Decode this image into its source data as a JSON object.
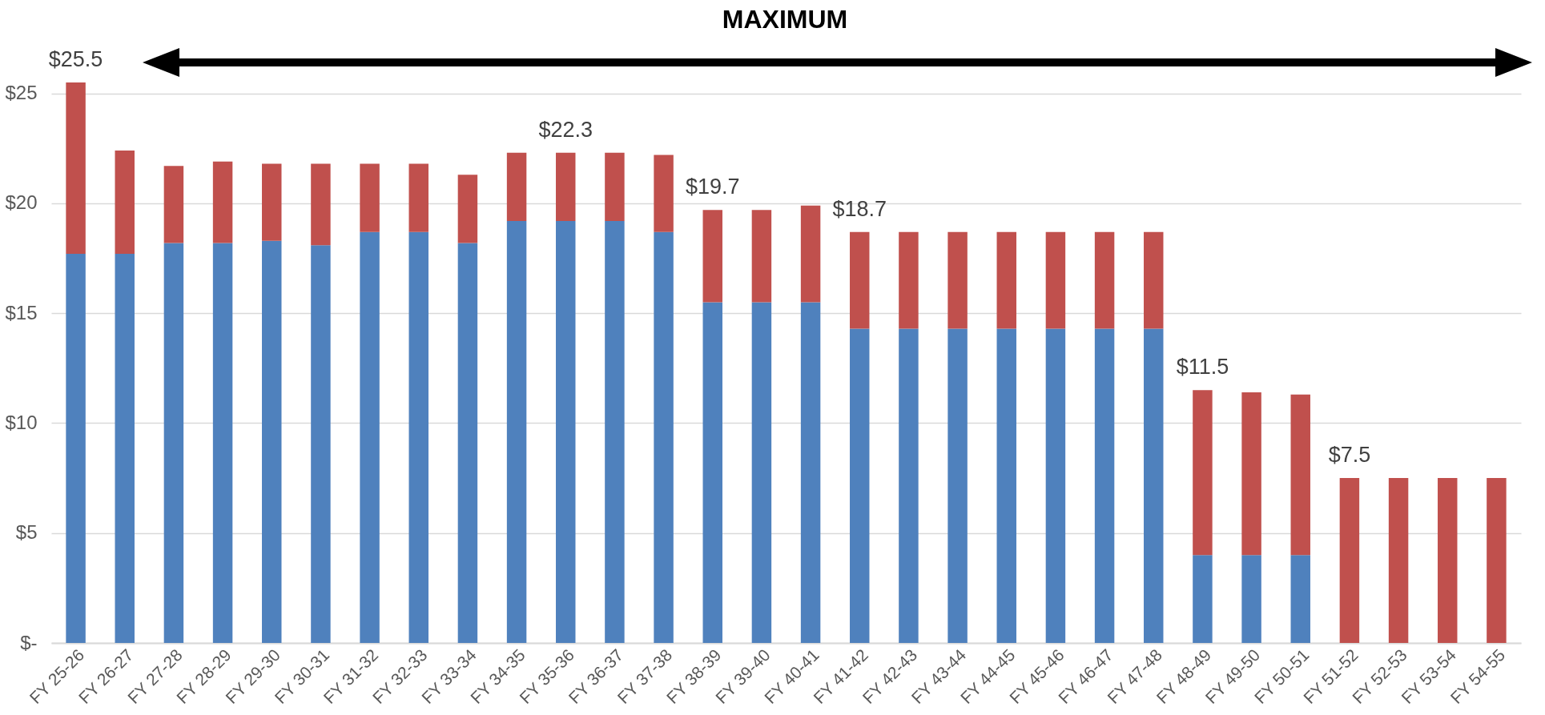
{
  "chart_data": {
    "type": "bar",
    "stacked": true,
    "categories": [
      "FY 25-26",
      "FY 26-27",
      "FY 27-28",
      "FY 28-29",
      "FY 29-30",
      "FY 30-31",
      "FY 31-32",
      "FY 32-33",
      "FY 33-34",
      "FY 34-35",
      "FY 35-36",
      "FY 36-37",
      "FY 37-38",
      "FY 38-39",
      "FY 39-40",
      "FY 40-41",
      "FY 41-42",
      "FY 42-43",
      "FY 43-44",
      "FY 44-45",
      "FY 45-46",
      "FY 46-47",
      "FY 47-48",
      "FY 48-49",
      "FY 49-50",
      "FY 50-51",
      "FY 51-52",
      "FY 52-53",
      "FY 53-54",
      "FY 54-55"
    ],
    "series": [
      {
        "color": "#4f81bd",
        "values": [
          17.7,
          17.7,
          18.2,
          18.2,
          18.3,
          18.1,
          18.7,
          18.7,
          18.2,
          19.2,
          19.2,
          19.2,
          18.7,
          15.5,
          15.5,
          15.5,
          14.3,
          14.3,
          14.3,
          14.3,
          14.3,
          14.3,
          14.3,
          4.0,
          4.0,
          4.0,
          0,
          0,
          0,
          0
        ]
      },
      {
        "color": "#c0504d",
        "values": [
          7.8,
          4.7,
          3.5,
          3.7,
          3.5,
          3.7,
          3.1,
          3.1,
          3.1,
          3.1,
          3.1,
          3.1,
          3.5,
          4.2,
          4.2,
          4.4,
          4.4,
          4.4,
          4.4,
          4.4,
          4.4,
          4.4,
          4.4,
          7.5,
          7.4,
          7.3,
          7.5,
          7.5,
          7.5,
          7.5
        ]
      }
    ],
    "totals": [
      "$25.5",
      null,
      null,
      null,
      null,
      null,
      null,
      null,
      null,
      null,
      "$22.3",
      null,
      null,
      "$19.7",
      null,
      null,
      "$18.7",
      null,
      null,
      null,
      null,
      null,
      null,
      "$11.5",
      null,
      null,
      "$7.5",
      null,
      null,
      null
    ],
    "ylim": [
      0,
      25.5
    ],
    "yticks": [
      {
        "value": 0,
        "label": "$-"
      },
      {
        "value": 5,
        "label": "$5"
      },
      {
        "value": 10,
        "label": "$10"
      },
      {
        "value": 15,
        "label": "$15"
      },
      {
        "value": 20,
        "label": "$20"
      },
      {
        "value": 25,
        "label": "$25"
      }
    ],
    "grid": "y",
    "legend": false,
    "annotations": [
      "MAXIMUM"
    ]
  }
}
